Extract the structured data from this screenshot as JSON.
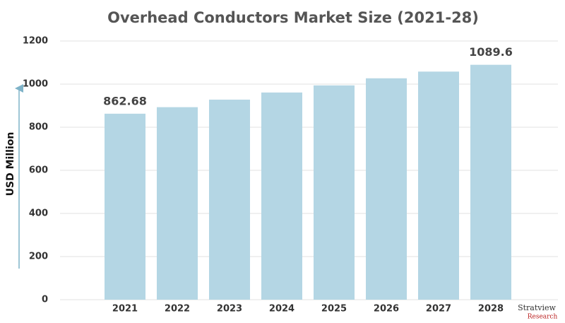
{
  "chart_data": {
    "type": "bar",
    "title": "Overhead Conductors Market Size (2021-28)",
    "y_label": "USD Million",
    "categories": [
      "2021",
      "2022",
      "2023",
      "2024",
      "2025",
      "2026",
      "2027",
      "2028"
    ],
    "values": [
      862.68,
      893,
      928,
      961,
      994,
      1027,
      1058,
      1089.6
    ],
    "value_labels": [
      "862.68",
      null,
      null,
      null,
      null,
      null,
      null,
      "1089.6"
    ],
    "color": "#b4d6e4",
    "ylim": [
      0,
      1200
    ],
    "yticks": [
      0,
      200,
      400,
      600,
      800,
      1000,
      1200
    ],
    "grid": true
  },
  "logo": {
    "name": "Stratview",
    "sub": "Research"
  }
}
